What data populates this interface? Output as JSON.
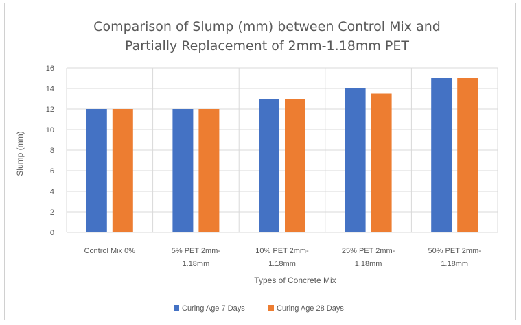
{
  "chart_data": {
    "type": "bar",
    "title_lines": [
      "Comparison of Slump (mm) between Control Mix and",
      "Partially Replacement of 2mm-1.18mm PET"
    ],
    "xlabel": "Types of Concrete Mix",
    "ylabel": "Slump (mm)",
    "ylim": [
      0,
      16
    ],
    "yticks": [
      0,
      2,
      4,
      6,
      8,
      10,
      12,
      14,
      16
    ],
    "grid": true,
    "legend_position": "bottom",
    "categories": [
      [
        "Control Mix 0%"
      ],
      [
        "5% PET 2mm-",
        "1.18mm"
      ],
      [
        "10% PET 2mm-",
        "1.18mm"
      ],
      [
        "25% PET 2mm-",
        "1.18mm"
      ],
      [
        "50% PET 2mm-",
        "1.18mm"
      ]
    ],
    "series": [
      {
        "name": "Curing Age 7 Days",
        "color": "#4472C4",
        "values": [
          12,
          12,
          13,
          14,
          15
        ]
      },
      {
        "name": "Curing Age 28 Days",
        "color": "#ED7D31",
        "values": [
          12,
          12,
          13,
          13.5,
          15
        ]
      }
    ]
  }
}
